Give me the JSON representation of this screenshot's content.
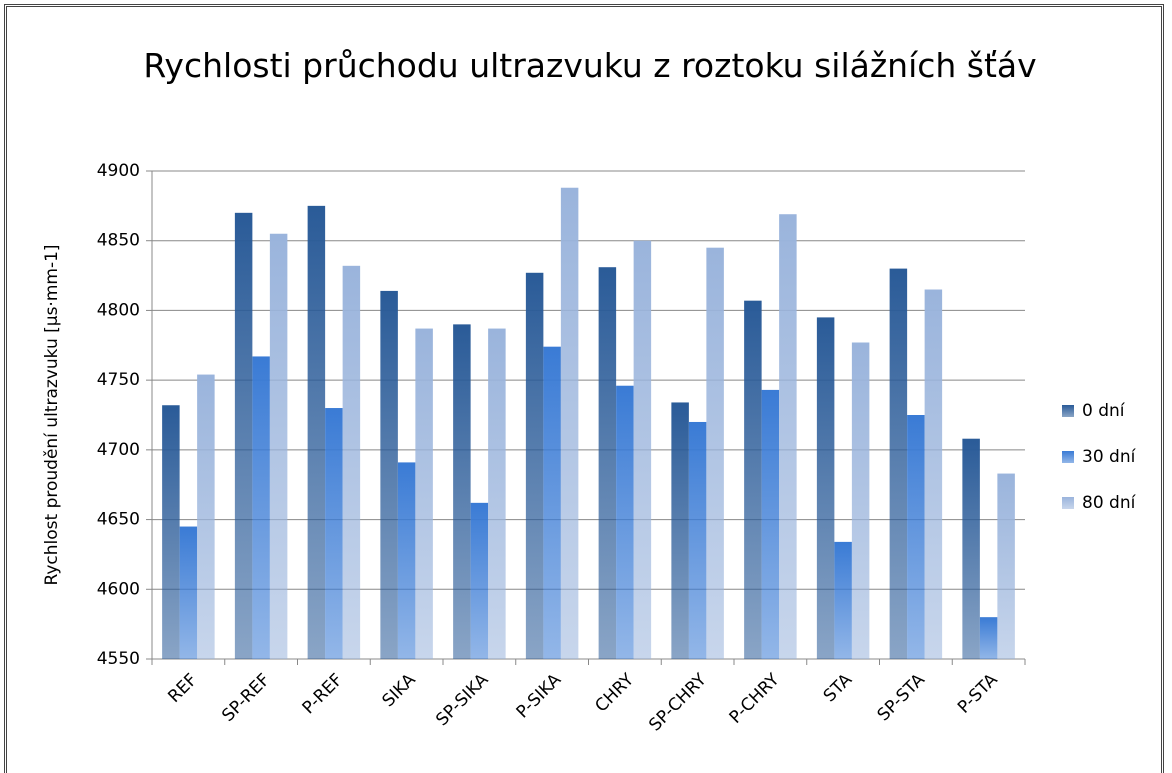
{
  "chart_data": {
    "type": "bar",
    "title": "Rychlosti průchodu ultrazvuku z roztoku silážních šťáv",
    "y_label": "Rychlost proudění ultrazvuku [µs·mm-1]",
    "categories": [
      "REF",
      "SP-REF",
      "P-REF",
      "SIKA",
      "SP-SIKA",
      "P-SIKA",
      "CHRY",
      "SP-CHRY",
      "P-CHRY",
      "STA",
      "SP-STA",
      "P-STA"
    ],
    "series": [
      {
        "name": "0 dní",
        "color": "#2a5b98",
        "values": [
          4732,
          4870,
          4875,
          4814,
          4790,
          4827,
          4831,
          4734,
          4807,
          4795,
          4830,
          4708
        ]
      },
      {
        "name": "30 dní",
        "color": "#3a7bd5",
        "values": [
          4645,
          4767,
          4730,
          4691,
          4662,
          4774,
          4746,
          4720,
          4743,
          4634,
          4725,
          4580
        ]
      },
      {
        "name": "80 dní",
        "color": "#9ab4dc",
        "values": [
          4754,
          4855,
          4832,
          4787,
          4787,
          4888,
          4850,
          4845,
          4869,
          4777,
          4815,
          4683
        ]
      }
    ],
    "ylim": [
      4550,
      4900
    ],
    "yticks": [
      4550,
      4600,
      4650,
      4700,
      4750,
      4800,
      4850,
      4900
    ],
    "grid": true,
    "legend": "right"
  }
}
